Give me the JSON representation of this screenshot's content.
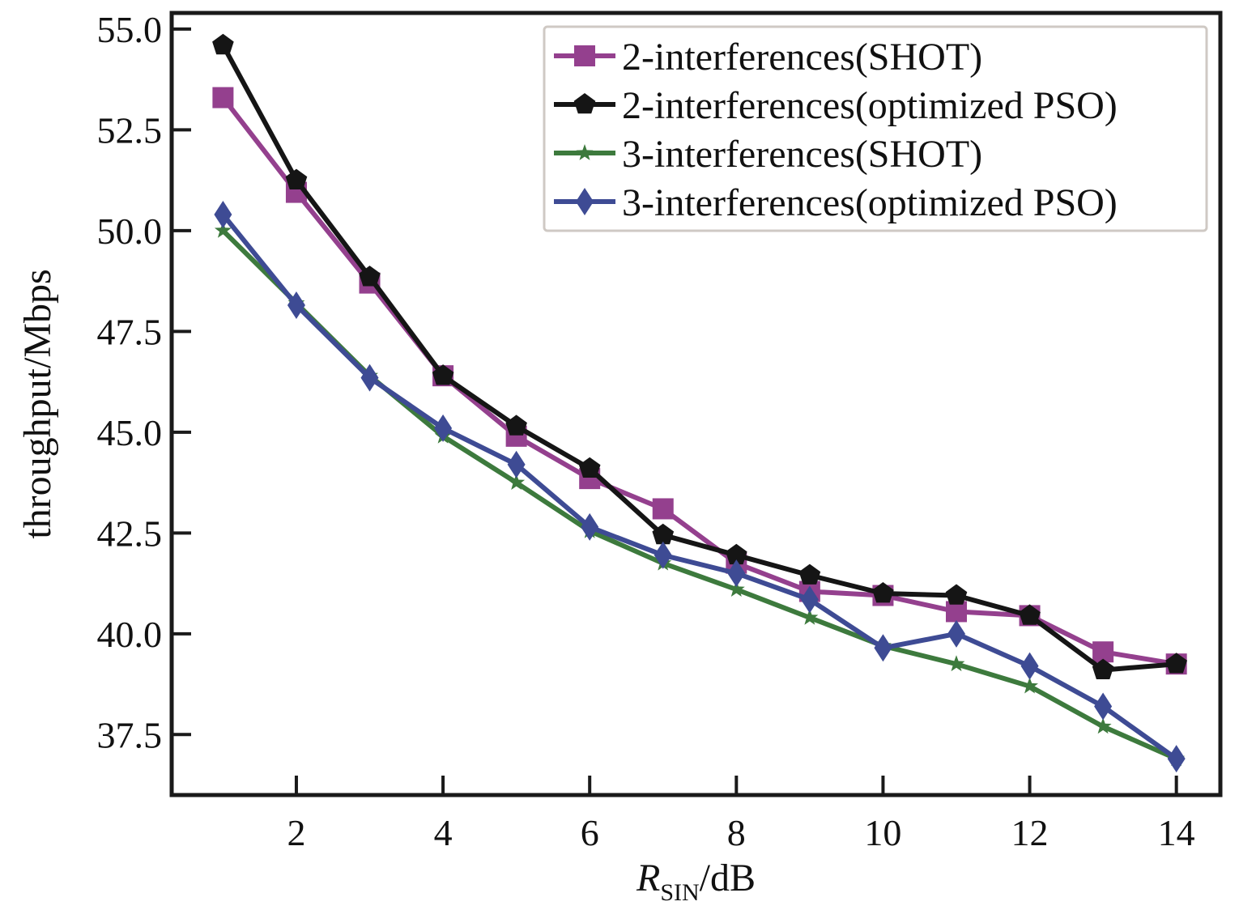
{
  "chart_data": {
    "type": "line",
    "title": "",
    "xlabel": {
      "main": "R",
      "subscript": "SIN",
      "suffix": "/dB"
    },
    "ylabel": "throughput/Mbps",
    "xlim": [
      0.3,
      14.6
    ],
    "ylim": [
      36.0,
      55.4
    ],
    "x_ticks": [
      2,
      4,
      6,
      8,
      10,
      12,
      14
    ],
    "x_tick_labels": [
      "2",
      "4",
      "6",
      "8",
      "10",
      "12",
      "14"
    ],
    "y_ticks": [
      37.5,
      40.0,
      42.5,
      45.0,
      47.5,
      50.0,
      52.5,
      55.0
    ],
    "y_tick_labels": [
      "37.5",
      "40.0",
      "42.5",
      "45.0",
      "47.5",
      "50.0",
      "52.5",
      "55.0"
    ],
    "grid": false,
    "legend_position": "top-right",
    "x": [
      1,
      2,
      3,
      4,
      5,
      6,
      7,
      8,
      9,
      10,
      11,
      12,
      13,
      14
    ],
    "series": [
      {
        "name": "2-interferences(SHOT)",
        "color": "#94408e",
        "marker": "square",
        "values": [
          53.3,
          50.95,
          48.7,
          46.4,
          44.9,
          43.85,
          43.1,
          41.75,
          41.05,
          40.95,
          40.55,
          40.45,
          39.55,
          39.25
        ]
      },
      {
        "name": "2-interferences(optimized PSO)",
        "color": "#151515",
        "marker": "pentagon",
        "values": [
          54.6,
          51.25,
          48.85,
          46.4,
          45.15,
          44.1,
          42.45,
          41.95,
          41.45,
          41.0,
          40.95,
          40.45,
          39.1,
          39.25
        ]
      },
      {
        "name": "3-interferences(SHOT)",
        "color": "#3d7a3d",
        "marker": "star",
        "values": [
          50.0,
          48.2,
          46.4,
          44.9,
          43.75,
          42.55,
          41.75,
          41.1,
          40.4,
          39.7,
          39.25,
          38.7,
          37.7,
          36.9
        ]
      },
      {
        "name": "3-interferences(optimized PSO)",
        "color": "#3e4b94",
        "marker": "diamond",
        "values": [
          50.4,
          48.15,
          46.35,
          45.1,
          44.2,
          42.65,
          41.95,
          41.5,
          40.85,
          39.65,
          40.0,
          39.2,
          38.2,
          36.9
        ]
      }
    ]
  }
}
